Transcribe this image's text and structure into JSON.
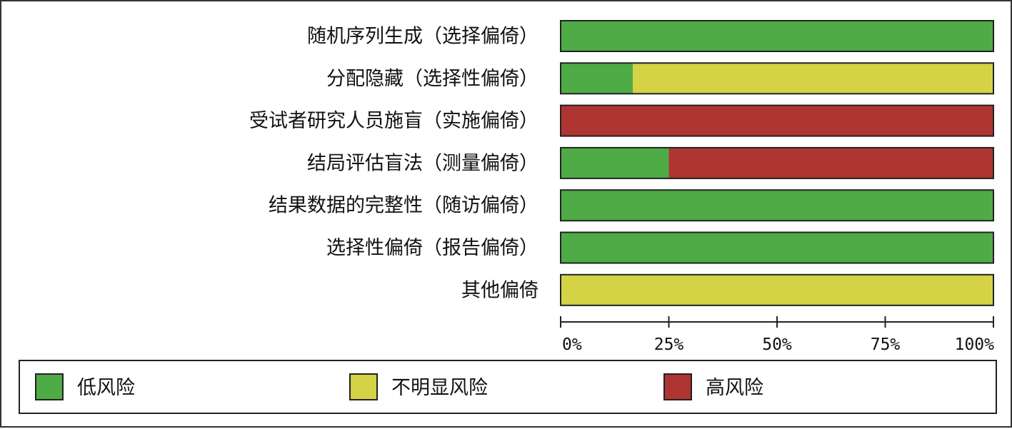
{
  "chart_data": {
    "type": "bar",
    "orientation": "horizontal",
    "stacked": true,
    "percent_scale": true,
    "categories": [
      "随机序列生成（选择偏倚）",
      "分配隐藏（选择性偏倚）",
      "受试者研究人员施盲（实施偏倚）",
      "结局评估盲法（测量偏倚）",
      "结果数据的完整性（随访偏倚）",
      "选择性偏倚（报告偏倚）",
      "其他偏倚"
    ],
    "series": [
      {
        "name": "低风险",
        "color": "#4fab45",
        "values": [
          100,
          16.7,
          0,
          25,
          100,
          100,
          0
        ]
      },
      {
        "name": "不明显风险",
        "color": "#d4d245",
        "values": [
          0,
          83.3,
          0,
          0,
          0,
          0,
          100
        ]
      },
      {
        "name": "高风险",
        "color": "#ae3532",
        "values": [
          0,
          0,
          100,
          75,
          0,
          0,
          0
        ]
      }
    ],
    "xlim": [
      0,
      100
    ],
    "xticks": [
      0,
      25,
      50,
      75,
      100
    ],
    "xtick_labels": [
      "0%",
      "25%",
      "50%",
      "75%",
      "100%"
    ],
    "grid": false,
    "legend": {
      "placement": "bottom",
      "entries": [
        "低风险",
        "不明显风险",
        "高风险"
      ]
    }
  }
}
